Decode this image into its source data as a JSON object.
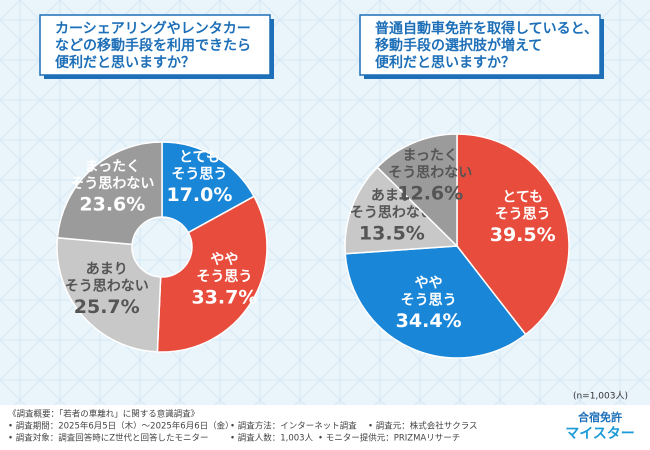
{
  "chart_data": [
    {
      "type": "donut",
      "title": [
        "カーシェアリングやレンタカー",
        "などの移動手段を利用できたら",
        "便利だと思いますか？"
      ],
      "categories": [
        [
          "とても",
          "そう思う"
        ],
        [
          "やや",
          "そう思う"
        ],
        [
          "あまり",
          "そう思わない"
        ],
        [
          "まったく",
          "そう思わない"
        ]
      ],
      "values": [
        17.0,
        33.7,
        25.7,
        23.6
      ],
      "value_labels": [
        "17.0%",
        "33.7%",
        "25.7%",
        "23.6%"
      ],
      "colors": [
        "#1a86d8",
        "#e84c3d",
        "#c8c8c8",
        "#9b9b9b"
      ]
    },
    {
      "type": "pie",
      "title": [
        "普通自動車免許を取得していると、",
        "移動手段の選択肢が増えて",
        "便利だと思いますか？"
      ],
      "categories": [
        [
          "とても",
          "そう思う"
        ],
        [
          "やや",
          "そう思う"
        ],
        [
          "あまり",
          "そう思わない"
        ],
        [
          "まったく",
          "そう思わない"
        ]
      ],
      "values": [
        39.5,
        34.4,
        13.5,
        12.6
      ],
      "value_labels": [
        "39.5%",
        "34.4%",
        "13.5%",
        "12.6%"
      ],
      "colors": [
        "#e84c3d",
        "#1a86d8",
        "#c8c8c8",
        "#9b9b9b"
      ]
    }
  ],
  "note": "(n=1,003人)",
  "footer": [
    [
      "《調査概要：「若者の車離れ」に関する意識調査》"
    ],
    [
      "• 調査期間：2025年6月5日（木）～2025年6月6日（金）",
      "• 調査方法：インターネット調査",
      "• 調査元：株式会社サクラス"
    ],
    [
      "• 調査対象：調査回答時にZ世代と回答したモニター",
      "• 調査人数：1,003人",
      "• モニター提供元：PRIZMAリサーチ"
    ]
  ],
  "logo": [
    "合宿免許",
    "マイスター"
  ]
}
